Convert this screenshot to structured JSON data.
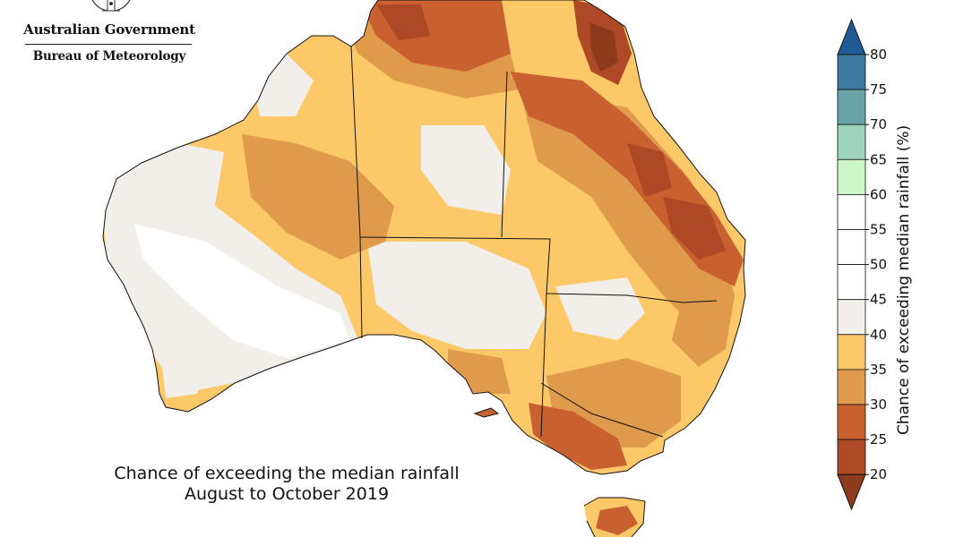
{
  "branding": {
    "line1": "Australian Government",
    "line2": "Bureau of Meteorology"
  },
  "caption": {
    "line1": "Chance of exceeding the median rainfall",
    "line2": "August to October 2019"
  },
  "legend": {
    "title": "Chance of exceeding median rainfall (%)",
    "ticks": [
      "20",
      "25",
      "30",
      "35",
      "40",
      "45",
      "50",
      "55",
      "60",
      "65",
      "70",
      "75",
      "80"
    ],
    "colors": {
      "below_20": "#8e3a1c",
      "20_25": "#ad4a25",
      "25_30": "#c8612f",
      "30_35": "#e09a4c",
      "35_40": "#fdc968",
      "40_45": "#f2eeea",
      "45_50": "#ffffff",
      "50_55": "#ffffff",
      "55_60": "#ffffff",
      "60_65": "#cdf7c8",
      "65_70": "#9ed3bc",
      "70_75": "#6aa3a8",
      "75_80": "#3c7aa0",
      "above_80": "#1f5a94"
    }
  },
  "map": {
    "region": "Australia",
    "states": [
      "WA",
      "NT",
      "SA",
      "QLD",
      "NSW",
      "VIC",
      "TAS"
    ]
  }
}
